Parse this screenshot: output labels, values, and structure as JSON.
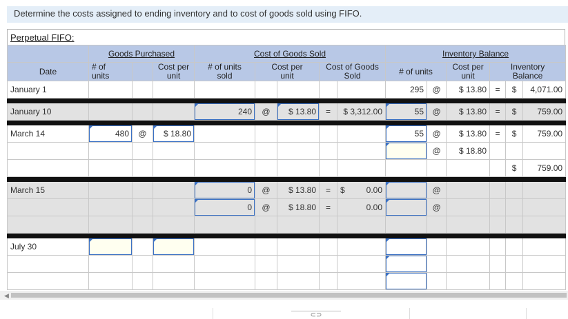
{
  "instruction": "Determine the costs assigned to ending inventory and to cost of goods sold using FIFO.",
  "section_title": "Perpetual FIFO:",
  "headers": {
    "goods_purchased": "Goods Purchased",
    "cost_of_goods_sold": "Cost of Goods Sold",
    "inventory_balance": "Inventory Balance",
    "date": "Date",
    "gp_units_1": "# of",
    "gp_units_2": "units",
    "gp_cost_1": "Cost per",
    "gp_cost_2": "unit",
    "cogs_units_1": "# of units",
    "cogs_units_2": "sold",
    "cogs_cost_1": "Cost per",
    "cogs_cost_2": "unit",
    "cogs_total_1": "Cost of Goods",
    "cogs_total_2": "Sold",
    "ib_units": "# of units",
    "ib_cost_1": "Cost per",
    "ib_cost_2": "unit",
    "ib_bal_1": "Inventory",
    "ib_bal_2": "Balance"
  },
  "symbols": {
    "at": "@",
    "eq": "=",
    "dollar": "$"
  },
  "rows": {
    "jan1": {
      "date": "January 1",
      "ib_units": "295",
      "ib_cost": "$ 13.80",
      "ib_balance": "4,071.00"
    },
    "jan10": {
      "date": "January 10",
      "cogs_units": "240",
      "cogs_cost": "$ 13.80",
      "cogs_total": "$ 3,312.00",
      "ib_units": "55",
      "ib_cost": "$ 13.80",
      "ib_balance": "759.00"
    },
    "mar14": {
      "date": "March 14",
      "gp_units": "480",
      "gp_cost": "$ 18.80",
      "ib_units": "55",
      "ib_cost": "$ 13.80",
      "ib_balance": "759.00",
      "ib_cost_2": "$ 18.80",
      "ib_total": "759.00"
    },
    "mar15": {
      "date": "March 15",
      "cogs_units_a": "0",
      "cogs_cost_a": "$ 13.80",
      "cogs_total_a": "0.00",
      "cogs_units_b": "0",
      "cogs_cost_b": "$ 18.80",
      "cogs_total_b": "0.00"
    },
    "jul30": {
      "date": "July 30"
    }
  },
  "footer": {
    "link_icon": "link-icon"
  }
}
